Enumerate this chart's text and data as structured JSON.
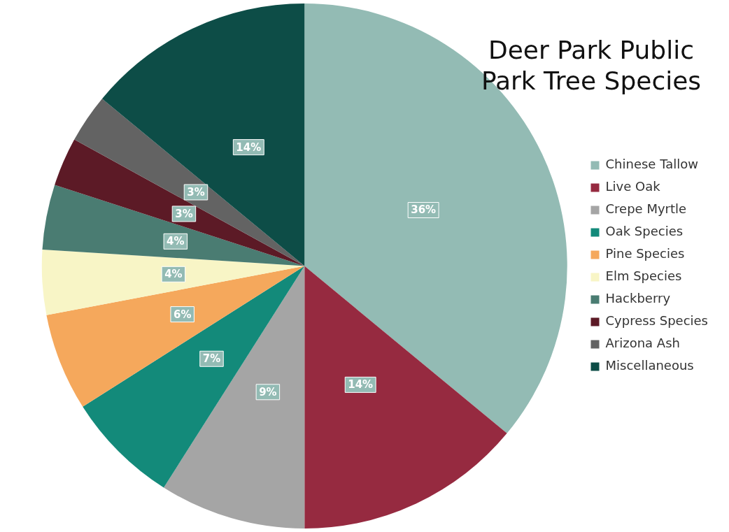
{
  "chart_data": {
    "type": "pie",
    "title": "Deer Park Public Park Tree Species",
    "categories": [
      "Chinese Tallow",
      "Live Oak",
      "Crepe Myrtle",
      "Oak Species",
      "Pine Species",
      "Elm Species",
      "Hackberry",
      "Cypress Species",
      "Arizona Ash",
      "Miscellaneous"
    ],
    "values": [
      36,
      14,
      9,
      7,
      6,
      4,
      4,
      3,
      3,
      14
    ],
    "colors": [
      "#93bbb4",
      "#962a40",
      "#a5a5a5",
      "#138a7a",
      "#f5a85c",
      "#f8f5c6",
      "#4a7c72",
      "#5c1a26",
      "#636363",
      "#0d4d47"
    ],
    "value_labels": [
      "36%",
      "14%",
      "9%",
      "7%",
      "6%",
      "4%",
      "4%",
      "3%",
      "3%",
      "14%"
    ],
    "legend": "right"
  }
}
